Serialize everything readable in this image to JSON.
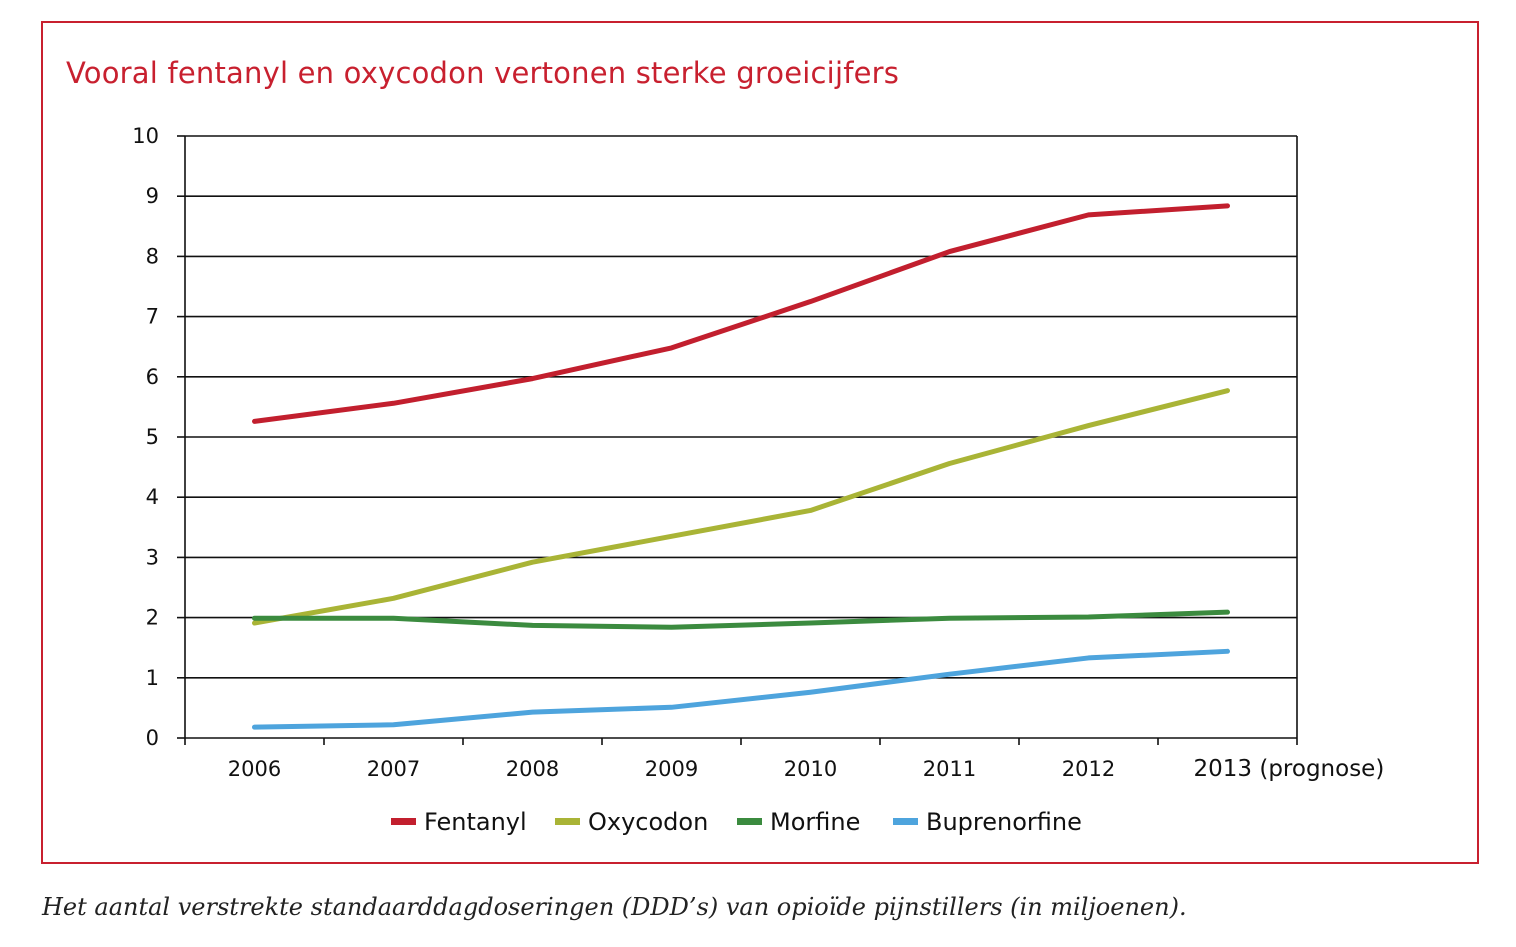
{
  "chart_data": {
    "type": "line",
    "title": "Vooral fentanyl en oxycodon vertonen sterke groeicijfers",
    "caption": "Het aantal verstrekte standaarddagdoseringen (DDD’s) van opioïde pijnstillers (in miljoenen).",
    "categories": [
      "2006",
      "2007",
      "2008",
      "2009",
      "2010",
      "2011",
      "2012",
      "2013 (prognose)"
    ],
    "ylim": [
      0,
      10
    ],
    "yticks": [
      "0",
      "1",
      "2",
      "3",
      "4",
      "5",
      "6",
      "7",
      "8",
      "9",
      "10"
    ],
    "grid": true,
    "legend_position": "bottom",
    "series": [
      {
        "name": "Fentanyl",
        "color": "#c21f2e",
        "values": [
          5.26,
          5.56,
          5.97,
          6.48,
          7.25,
          8.08,
          8.69,
          8.84
        ]
      },
      {
        "name": "Oxycodon",
        "color": "#a9b436",
        "values": [
          1.91,
          2.32,
          2.92,
          3.35,
          3.78,
          4.56,
          5.19,
          5.77
        ]
      },
      {
        "name": "Morfine",
        "color": "#3b8b3f",
        "values": [
          1.99,
          1.99,
          1.87,
          1.84,
          1.91,
          1.99,
          2.01,
          2.09
        ]
      },
      {
        "name": "Buprenorfine",
        "color": "#4ea4dd",
        "values": [
          0.18,
          0.22,
          0.43,
          0.51,
          0.76,
          1.06,
          1.33,
          1.44
        ]
      }
    ]
  }
}
